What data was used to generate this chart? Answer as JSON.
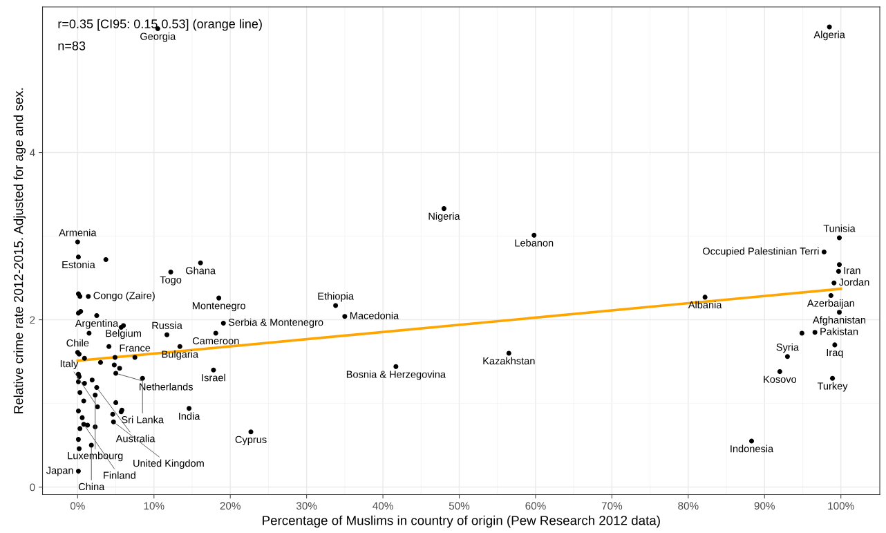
{
  "chart_data": {
    "type": "scatter",
    "xlabel": "Percentage of Muslims in country of origin (Pew Research 2012 data)",
    "ylabel": "Relative crime rate 2012-2015. Adjusted for age and sex.",
    "xlim": [
      -4.6,
      105.1
    ],
    "ylim": [
      -0.09,
      5.74
    ],
    "xticks": [
      {
        "value": 0,
        "label": "0%"
      },
      {
        "value": 10,
        "label": "10%"
      },
      {
        "value": 20,
        "label": "20%"
      },
      {
        "value": 30,
        "label": "30%"
      },
      {
        "value": 40,
        "label": "40%"
      },
      {
        "value": 50,
        "label": "50%"
      },
      {
        "value": 60,
        "label": "60%"
      },
      {
        "value": 70,
        "label": "70%"
      },
      {
        "value": 80,
        "label": "80%"
      },
      {
        "value": 90,
        "label": "90%"
      },
      {
        "value": 100,
        "label": "100%"
      }
    ],
    "yticks": [
      0,
      2,
      4
    ],
    "grid": true,
    "legend": false,
    "series": [
      {
        "marker": "circle",
        "color": "#000000",
        "x": [
          0.0,
          0.1,
          3.7,
          0.1,
          0.3,
          1.4,
          0.1,
          0.4,
          2.5,
          5.7,
          6.0,
          1.5,
          4.1,
          11.7,
          13.4,
          0.0,
          0.2,
          0.9,
          3.0,
          4.9,
          7.5,
          4.8,
          5.5,
          5.0,
          0.1,
          0.2,
          0.1,
          0.9,
          1.9,
          8.5,
          2.5,
          0.3,
          2.3,
          0.8,
          5.0,
          2.6,
          5.8,
          5.7,
          0.1,
          4.6,
          0.6,
          0.8,
          1.3,
          2.3,
          4.7,
          0.3,
          0.1,
          0.2,
          1.8,
          0.1,
          14.6,
          16.1,
          12.2,
          18.5,
          19.1,
          18.1,
          17.8,
          22.7,
          48.0,
          59.8,
          33.8,
          35.0,
          41.7,
          56.5,
          82.2,
          88.3,
          98.5,
          10.5,
          99.8,
          97.8,
          99.8,
          99.7,
          99.1,
          98.7,
          99.8,
          94.9,
          96.6,
          99.2,
          93.0,
          92.0,
          98.9
        ],
        "values": [
          2.93,
          2.75,
          2.72,
          2.31,
          2.28,
          2.28,
          2.08,
          2.1,
          2.05,
          1.91,
          1.93,
          1.84,
          1.68,
          1.82,
          1.68,
          1.61,
          1.59,
          1.54,
          1.49,
          1.55,
          1.55,
          1.46,
          1.42,
          1.36,
          1.35,
          1.32,
          1.26,
          1.24,
          1.28,
          1.3,
          1.19,
          1.13,
          1.1,
          1.03,
          1.01,
          0.96,
          0.92,
          0.9,
          0.91,
          0.87,
          0.83,
          0.75,
          0.74,
          0.72,
          0.78,
          0.7,
          0.57,
          0.46,
          0.5,
          0.19,
          0.94,
          2.68,
          2.57,
          2.26,
          1.96,
          1.84,
          1.4,
          0.66,
          3.33,
          3.01,
          2.17,
          2.04,
          1.44,
          1.6,
          2.27,
          0.55,
          5.5,
          5.48,
          2.98,
          2.81,
          2.66,
          2.58,
          2.44,
          2.29,
          2.09,
          1.84,
          1.85,
          1.7,
          1.56,
          1.38,
          1.3
        ]
      },
      {
        "type": "line",
        "color": "#ffa500",
        "x": [
          0,
          100
        ],
        "values": [
          1.51,
          2.37
        ]
      }
    ],
    "annotations": [
      "r=0.35 [CI95: 0.15 0.53] (orange line)",
      "n=83",
      {
        "text": "Armenia",
        "x": 0.0,
        "y": 2.93
      },
      {
        "text": "Estonia",
        "x": 0.1,
        "y": 2.75
      },
      {
        "text": "Congo (Zaire)",
        "x": 1.4,
        "y": 2.28
      },
      {
        "text": "Argentina",
        "x": 2.5,
        "y": 2.05
      },
      {
        "text": "Belgium",
        "x": 6.0,
        "y": 1.93
      },
      {
        "text": "Russia",
        "x": 11.7,
        "y": 1.82
      },
      {
        "text": "Bulgaria",
        "x": 13.4,
        "y": 1.68
      },
      {
        "text": "Chile",
        "x": 0.0,
        "y": 1.61
      },
      {
        "text": "France",
        "x": 7.5,
        "y": 1.55
      },
      {
        "text": "Netherlands",
        "x": 5.0,
        "y": 1.36
      },
      {
        "text": "Sri Lanka",
        "x": 8.5,
        "y": 1.3
      },
      {
        "text": "Australia",
        "x": 2.5,
        "y": 1.19
      },
      {
        "text": "Luxembourg",
        "x": 2.3,
        "y": 1.1
      },
      {
        "text": "Italy",
        "x": 2.6,
        "y": 0.96
      },
      {
        "text": "United Kingdom",
        "x": 4.7,
        "y": 0.78
      },
      {
        "text": "Finland",
        "x": 0.8,
        "y": 0.75
      },
      {
        "text": "China",
        "x": 1.8,
        "y": 0.5
      },
      {
        "text": "Japan",
        "x": 0.1,
        "y": 0.19
      },
      {
        "text": "India",
        "x": 14.6,
        "y": 0.94
      },
      {
        "text": "Ghana",
        "x": 16.1,
        "y": 2.68
      },
      {
        "text": "Togo",
        "x": 12.2,
        "y": 2.57
      },
      {
        "text": "Montenegro",
        "x": 18.5,
        "y": 2.26
      },
      {
        "text": "Serbia & Montenegro",
        "x": 19.1,
        "y": 1.96
      },
      {
        "text": "Cameroon",
        "x": 18.1,
        "y": 1.84
      },
      {
        "text": "Israel",
        "x": 17.8,
        "y": 1.4
      },
      {
        "text": "Cyprus",
        "x": 22.7,
        "y": 0.66
      },
      {
        "text": "Nigeria",
        "x": 48.0,
        "y": 3.33
      },
      {
        "text": "Lebanon",
        "x": 59.8,
        "y": 3.01
      },
      {
        "text": "Ethiopia",
        "x": 33.8,
        "y": 2.17
      },
      {
        "text": "Macedonia",
        "x": 35.0,
        "y": 2.04
      },
      {
        "text": "Bosnia & Herzegovina",
        "x": 41.7,
        "y": 1.44
      },
      {
        "text": "Kazakhstan",
        "x": 56.5,
        "y": 1.6
      },
      {
        "text": "Albania",
        "x": 82.2,
        "y": 2.27
      },
      {
        "text": "Indonesia",
        "x": 88.3,
        "y": 0.55
      },
      {
        "text": "Algeria",
        "x": 98.5,
        "y": 5.5
      },
      {
        "text": "Georgia",
        "x": 10.5,
        "y": 5.48
      },
      {
        "text": "Tunisia",
        "x": 99.8,
        "y": 2.98
      },
      {
        "text": "Occupied Palestinian Terri",
        "x": 97.8,
        "y": 2.81
      },
      {
        "text": "Iran",
        "x": 99.7,
        "y": 2.58
      },
      {
        "text": "Jordan",
        "x": 99.1,
        "y": 2.44
      },
      {
        "text": "Azerbaijan",
        "x": 98.7,
        "y": 2.29
      },
      {
        "text": "Afghanistan",
        "x": 99.8,
        "y": 2.09
      },
      {
        "text": "Pakistan",
        "x": 96.6,
        "y": 1.85
      },
      {
        "text": "Iraq",
        "x": 99.2,
        "y": 1.7
      },
      {
        "text": "Syria",
        "x": 93.0,
        "y": 1.56
      },
      {
        "text": "Kosovo",
        "x": 92.0,
        "y": 1.38
      },
      {
        "text": "Turkey",
        "x": 98.9,
        "y": 1.3
      }
    ]
  }
}
